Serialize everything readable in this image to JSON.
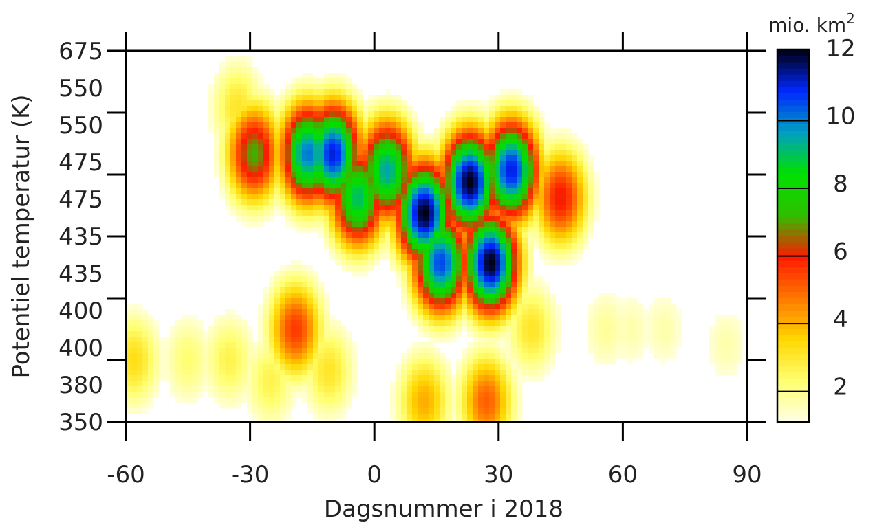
{
  "chart_data": {
    "type": "heatmap",
    "xlabel": "Dagsnummer i 2018",
    "ylabel": "Potentiel temperatur (K)",
    "x_ticks": [
      -60,
      -30,
      0,
      30,
      60,
      90
    ],
    "xlim": [
      -60,
      90
    ],
    "y_ticks": [
      "350",
      "380",
      "400",
      "400",
      "435",
      "435",
      "475",
      "475",
      "550",
      "550",
      "675"
    ],
    "y_tick_count": 7,
    "y_levels": [
      350,
      380,
      400,
      435,
      475,
      550,
      675
    ],
    "colorbar": {
      "unit": "mio. km",
      "unit_sup": "2",
      "ticks": [
        2,
        4,
        6,
        8,
        10,
        12
      ],
      "range": [
        1,
        12
      ],
      "colors": [
        "#ffffe6",
        "#ffff70",
        "#ffd700",
        "#ff7700",
        "#ff1a00",
        "#2fbf00",
        "#00e000",
        "#00a0c0",
        "#0028ff",
        "#000010"
      ]
    },
    "blobs": [
      {
        "day": -58,
        "level": 380,
        "value": 3.2
      },
      {
        "day": -45,
        "level": 380,
        "value": 2.2
      },
      {
        "day": -35,
        "level": 380,
        "value": 2.6
      },
      {
        "day": -25,
        "level": 370,
        "value": 2.6
      },
      {
        "day": -33,
        "level": 560,
        "value": 3.0
      },
      {
        "day": -29,
        "level": 500,
        "value": 7.0
      },
      {
        "day": -19,
        "level": 390,
        "value": 5.5
      },
      {
        "day": -16,
        "level": 500,
        "value": 10.0
      },
      {
        "day": -10,
        "level": 500,
        "value": 11.0
      },
      {
        "day": -11,
        "level": 375,
        "value": 3.0
      },
      {
        "day": -4,
        "level": 460,
        "value": 9.0
      },
      {
        "day": 3,
        "level": 480,
        "value": 9.5
      },
      {
        "day": 12,
        "level": 450,
        "value": 12.0
      },
      {
        "day": 16,
        "level": 420,
        "value": 10.5
      },
      {
        "day": 12,
        "level": 360,
        "value": 4.0
      },
      {
        "day": 23,
        "level": 470,
        "value": 12.0
      },
      {
        "day": 28,
        "level": 420,
        "value": 12.0
      },
      {
        "day": 33,
        "level": 480,
        "value": 11.0
      },
      {
        "day": 27,
        "level": 360,
        "value": 5.0
      },
      {
        "day": 38,
        "level": 390,
        "value": 3.0
      },
      {
        "day": 45,
        "level": 460,
        "value": 6.0
      },
      {
        "day": 56,
        "level": 390,
        "value": 1.8
      },
      {
        "day": 62,
        "level": 390,
        "value": 1.6
      },
      {
        "day": 70,
        "level": 390,
        "value": 1.6
      },
      {
        "day": 85,
        "level": 385,
        "value": 1.6
      }
    ]
  }
}
